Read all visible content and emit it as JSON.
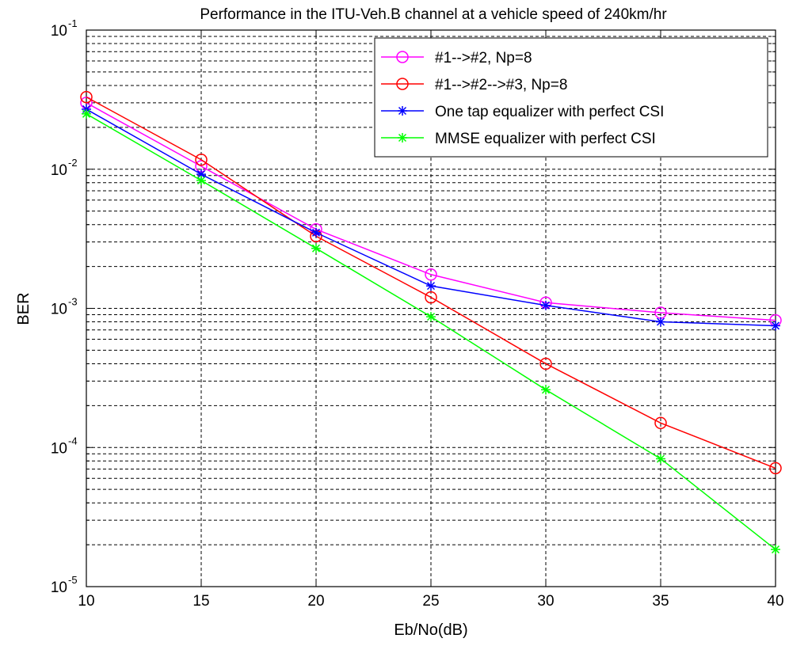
{
  "chart_data": {
    "type": "line",
    "title": "Performance in the ITU-Veh.B channel at a vehicle speed of 240km/hr",
    "xlabel": "Eb/No(dB)",
    "ylabel": "BER",
    "xlim": [
      10,
      40
    ],
    "ylim": [
      1e-05,
      0.1
    ],
    "yscale": "log",
    "grid": true,
    "legend_position": "top-right",
    "x_ticks": [
      "10",
      "15",
      "20",
      "25",
      "30",
      "35",
      "40"
    ],
    "y_tick_labels": [
      {
        "base": "10",
        "exp": "-5"
      },
      {
        "base": "10",
        "exp": "-4"
      },
      {
        "base": "10",
        "exp": "-3"
      },
      {
        "base": "10",
        "exp": "-2"
      },
      {
        "base": "10",
        "exp": "-1"
      }
    ],
    "x": [
      10,
      15,
      20,
      25,
      30,
      35,
      40
    ],
    "series": [
      {
        "name": "#1-->#2, Np=8",
        "color": "#ff00ff",
        "marker": "circle",
        "values": [
          0.03,
          0.0105,
          0.0037,
          0.00175,
          0.0011,
          0.00093,
          0.00082
        ]
      },
      {
        "name": "#1-->#2-->#3, Np=8",
        "color": "#ff0000",
        "marker": "circle",
        "values": [
          0.033,
          0.0117,
          0.0033,
          0.0012,
          0.0004,
          0.00015,
          7.1e-05
        ]
      },
      {
        "name": "One tap equalizer with perfect CSI",
        "color": "#0000ff",
        "marker": "star",
        "values": [
          0.027,
          0.0092,
          0.0035,
          0.00145,
          0.00105,
          0.0008,
          0.00075
        ]
      },
      {
        "name": "MMSE equalizer with perfect CSI",
        "color": "#00ff00",
        "marker": "star",
        "values": [
          0.025,
          0.0083,
          0.0027,
          0.00087,
          0.00026,
          8.3e-05,
          1.85e-05
        ]
      }
    ]
  }
}
